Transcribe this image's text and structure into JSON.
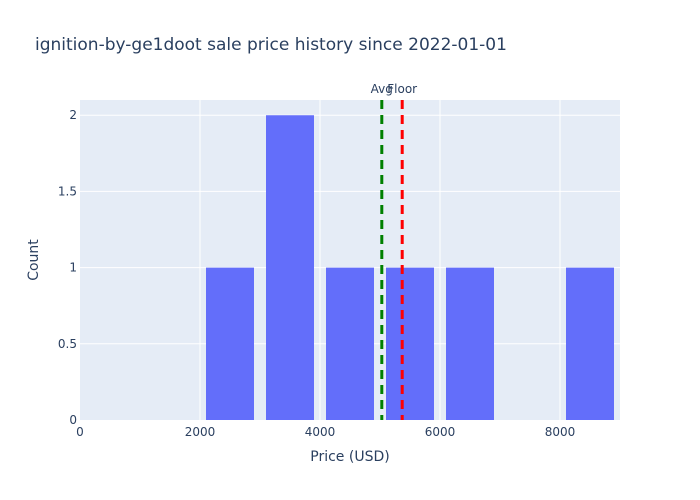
{
  "chart_data": {
    "type": "bar",
    "title": "ignition-by-ge1doot sale price history since 2022-01-01",
    "xlabel": "Price (USD)",
    "ylabel": "Count",
    "xlim": [
      0,
      9000
    ],
    "ylim": [
      0,
      2.1
    ],
    "x_ticks": [
      "0",
      "2000",
      "4000",
      "6000",
      "8000"
    ],
    "y_ticks": [
      "0",
      "0.5",
      "1",
      "1.5",
      "2"
    ],
    "grid": true,
    "bins": [
      {
        "x0": 2000,
        "x1": 3000,
        "count": 1
      },
      {
        "x0": 3000,
        "x1": 4000,
        "count": 2
      },
      {
        "x0": 4000,
        "x1": 5000,
        "count": 1
      },
      {
        "x0": 5000,
        "x1": 6000,
        "count": 1
      },
      {
        "x0": 6000,
        "x1": 7000,
        "count": 1
      },
      {
        "x0": 8000,
        "x1": 9000,
        "count": 1
      }
    ],
    "reference_lines": [
      {
        "label": "Avg",
        "value": 5030,
        "color": "#008000",
        "style": "dashed"
      },
      {
        "label": "Floor",
        "value": 5370,
        "color": "#ff0000",
        "style": "dashed"
      }
    ],
    "colors": {
      "bar": "#636efa",
      "plot_background": "#e5ecf6",
      "grid": "#ffffff",
      "text": "#2a3f5f"
    }
  }
}
